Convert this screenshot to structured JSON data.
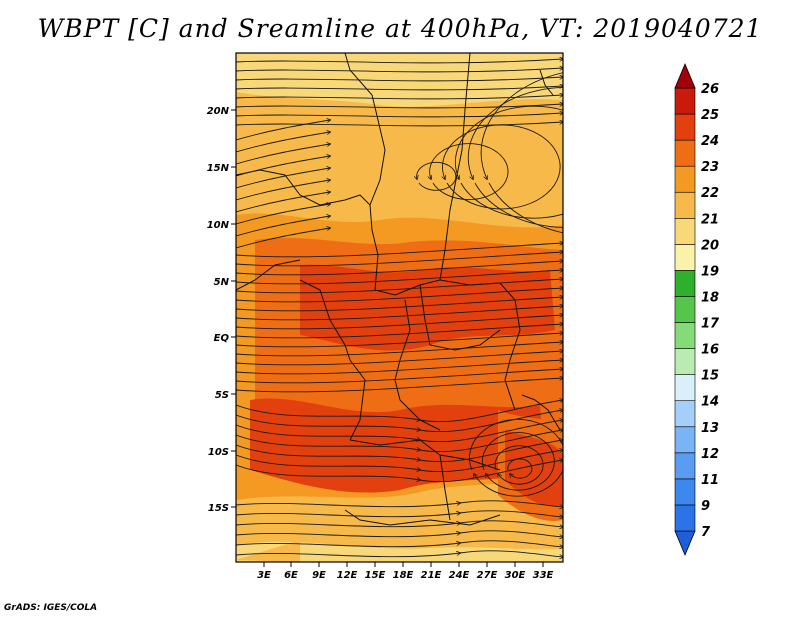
{
  "title": "WBPT [C] and Sreamline at 400hPa, VT: 2019040721",
  "footer": "GrADS: IGES/COLA",
  "lat_labels": [
    "20N",
    "15N",
    "10N",
    "5N",
    "EQ",
    "5S",
    "10S",
    "15S"
  ],
  "lon_labels": [
    "3E",
    "6E",
    "9E",
    "12E",
    "15E",
    "18E",
    "21E",
    "24E",
    "27E",
    "30E",
    "33E"
  ],
  "colorbar": {
    "labels": [
      "7",
      "9",
      "11",
      "12",
      "13",
      "14",
      "15",
      "16",
      "17",
      "18",
      "19",
      "20",
      "21",
      "22",
      "23",
      "24",
      "25",
      "26"
    ],
    "colors": [
      "#1d5fd6",
      "#2b73e6",
      "#3d88ef",
      "#5a9cf2",
      "#7ab4f5",
      "#a3cff8",
      "#d9f0fb",
      "#b9ecb0",
      "#86db79",
      "#55c54c",
      "#2fb02c",
      "#fbf2a9",
      "#f9d87a",
      "#f7b94a",
      "#f49a22",
      "#ef6e15",
      "#e2400f",
      "#c91a0c",
      "#a2000a"
    ]
  },
  "field_colors": {
    "c19": "#f9d87a",
    "c20": "#f7b94a",
    "c21": "#f49a22",
    "c22": "#ef6e15",
    "c23": "#e2400f",
    "streamline": "#1a1a1a",
    "border": "#111111"
  }
}
